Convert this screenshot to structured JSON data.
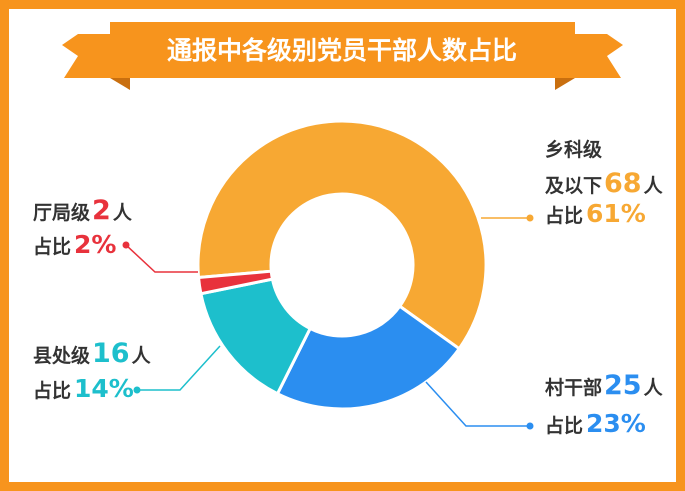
{
  "colors": {
    "frame": "#f7941d",
    "banner": "#f7941d",
    "banner_fold": "#c96f0f",
    "dark_text": "#333333"
  },
  "chart_data": {
    "type": "pie",
    "style": "donut",
    "title": "通报中各级别党员干部人数占比",
    "unit": "人",
    "slices": [
      {
        "category": "乡科级及以下",
        "count": 68,
        "count_text": "68",
        "percent_text": "61%",
        "share_prefix": "占比",
        "color": "#f7a833"
      },
      {
        "category": "村干部",
        "count": 25,
        "count_text": "25",
        "percent_text": "23%",
        "share_prefix": "占比",
        "color": "#2b8ef0"
      },
      {
        "category": "县处级",
        "count": 16,
        "count_text": "16",
        "percent_text": "14%",
        "share_prefix": "占比",
        "color": "#1dbfcc"
      },
      {
        "category": "厅局级",
        "count": 2,
        "count_text": "2",
        "percent_text": "2%",
        "share_prefix": "占比",
        "color": "#e8323c"
      }
    ]
  }
}
